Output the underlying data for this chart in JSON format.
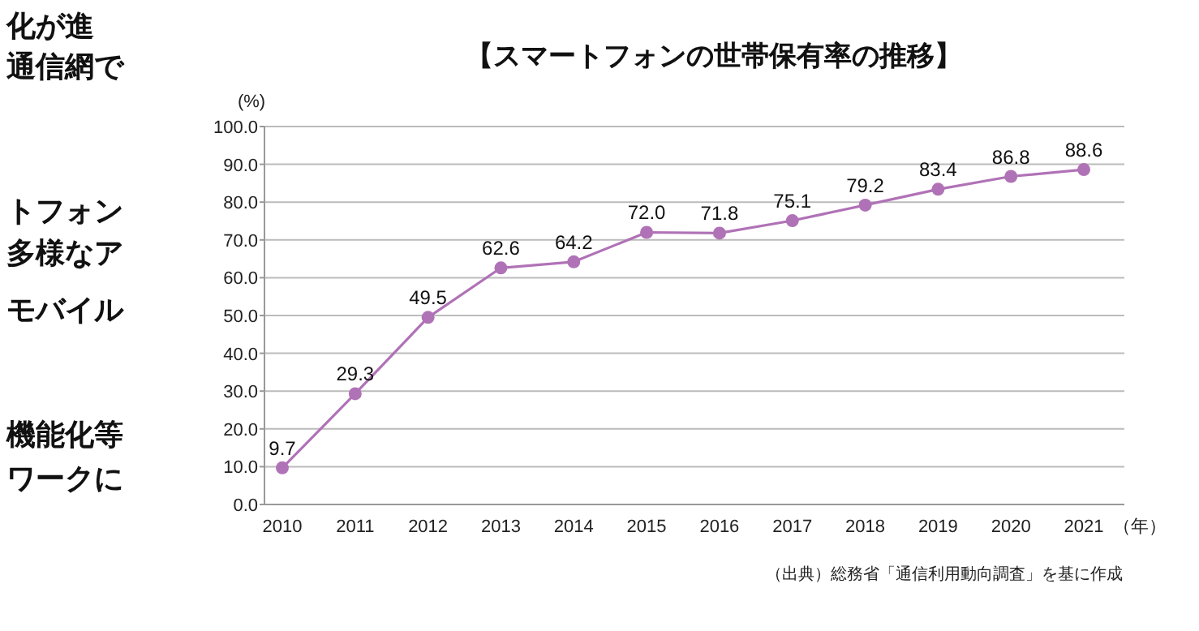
{
  "chart_data": {
    "type": "line",
    "title": "【スマートフォンの世帯保有率の推移】",
    "categories": [
      "2010",
      "2011",
      "2012",
      "2013",
      "2014",
      "2015",
      "2016",
      "2017",
      "2018",
      "2019",
      "2020",
      "2021"
    ],
    "series": [
      {
        "color": "#b072b6",
        "values": [
          9.7,
          29.3,
          49.5,
          62.6,
          64.2,
          72.0,
          71.8,
          75.1,
          79.2,
          83.4,
          86.8,
          88.6
        ],
        "value_labels": [
          "9.7",
          "29.3",
          "49.5",
          "62.6",
          "64.2",
          "72.0",
          "71.8",
          "75.1",
          "79.2",
          "83.4",
          "86.8",
          "88.6"
        ]
      }
    ],
    "ylim": [
      0,
      100
    ],
    "yticks": [
      {
        "value": 0,
        "label": "0.0"
      },
      {
        "value": 10,
        "label": "10.0"
      },
      {
        "value": 20,
        "label": "20.0"
      },
      {
        "value": 30,
        "label": "30.0"
      },
      {
        "value": 40,
        "label": "40.0"
      },
      {
        "value": 50,
        "label": "50.0"
      },
      {
        "value": 60,
        "label": "60.0"
      },
      {
        "value": 70,
        "label": "70.0"
      },
      {
        "value": 80,
        "label": "80.0"
      },
      {
        "value": 90,
        "label": "90.0"
      },
      {
        "value": 100,
        "label": "100.0"
      }
    ],
    "ylabel": "(%)",
    "xlabel": "（年）",
    "grid": "y",
    "marker": "circle",
    "line_style": "solid",
    "annotations": [
      "化が進",
      "通信網で",
      "トフォン",
      "多様なア",
      "モバイル",
      "機能化等",
      "ワークに",
      "（出典）総務省「通信利用動向調査」を基に作成"
    ]
  }
}
